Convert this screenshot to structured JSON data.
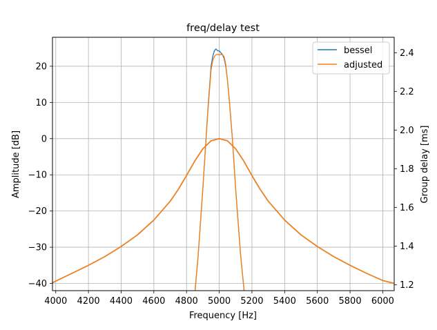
{
  "chart_data": {
    "type": "line",
    "title": "freq/delay test",
    "xlabel": "Frequency [Hz]",
    "ylabel": "Amplitude [dB]",
    "y2label": "Group delay [ms]",
    "xlim": [
      3980,
      6070
    ],
    "ylim": [
      -42,
      28
    ],
    "y2lim": [
      1.17,
      2.48
    ],
    "xticks": [
      4000,
      4200,
      4400,
      4600,
      4800,
      5000,
      5200,
      5400,
      5600,
      5800,
      6000
    ],
    "yticks": [
      -40,
      -30,
      -20,
      -10,
      0,
      10,
      20
    ],
    "y2ticks": [
      1.2,
      1.4,
      1.6,
      1.8,
      2.0,
      2.2,
      2.4
    ],
    "xtick_labels": [
      "4000",
      "4200",
      "4400",
      "4600",
      "4800",
      "5000",
      "5200",
      "5400",
      "5600",
      "5800",
      "6000"
    ],
    "ytick_labels": [
      "−40",
      "−30",
      "−20",
      "−10",
      "0",
      "10",
      "20"
    ],
    "y2tick_labels": [
      "1.2",
      "1.4",
      "1.6",
      "1.8",
      "2.0",
      "2.2",
      "2.4"
    ],
    "grid": true,
    "legend_position": "top-right",
    "series": [
      {
        "name": "bessel",
        "color": "#1f77b4",
        "amplitude": {
          "x": [
            3980,
            4100,
            4200,
            4300,
            4400,
            4500,
            4600,
            4700,
            4750,
            4800,
            4850,
            4900,
            4950,
            5000,
            5050,
            5100,
            5150,
            5200,
            5250,
            5300,
            5400,
            5500,
            5600,
            5700,
            5800,
            5900,
            6000,
            6070
          ],
          "y": [
            -39.8,
            -37.2,
            -35.0,
            -32.6,
            -29.8,
            -26.6,
            -22.5,
            -17.3,
            -14.0,
            -10.2,
            -6.2,
            -2.8,
            -0.6,
            0.0,
            -0.6,
            -2.8,
            -6.2,
            -10.2,
            -14.0,
            -17.3,
            -22.5,
            -26.6,
            -29.8,
            -32.6,
            -35.0,
            -37.2,
            -39.2,
            -40.0
          ]
        },
        "group_delay": {
          "x": [
            4852,
            4870,
            4900,
            4930,
            4950,
            4960,
            4970,
            4980,
            4990,
            5000,
            5010,
            5020,
            5030,
            5040,
            5050,
            5060,
            5080,
            5100,
            5130,
            5152
          ],
          "y": [
            1.17,
            1.34,
            1.7,
            2.1,
            2.33,
            2.38,
            2.41,
            2.42,
            2.41,
            2.41,
            2.4,
            2.39,
            2.37,
            2.33,
            2.26,
            2.17,
            1.96,
            1.7,
            1.36,
            1.17
          ]
        }
      },
      {
        "name": "adjusted",
        "color": "#ff7f0e",
        "amplitude": {
          "x": [
            3980,
            4100,
            4200,
            4300,
            4400,
            4500,
            4600,
            4700,
            4750,
            4800,
            4850,
            4900,
            4950,
            5000,
            5050,
            5100,
            5150,
            5200,
            5250,
            5300,
            5400,
            5500,
            5600,
            5700,
            5800,
            5900,
            6000,
            6070
          ],
          "y": [
            -39.8,
            -37.2,
            -35.0,
            -32.6,
            -29.8,
            -26.6,
            -22.5,
            -17.3,
            -14.0,
            -10.2,
            -6.2,
            -2.8,
            -0.6,
            0.0,
            -0.6,
            -2.8,
            -6.2,
            -10.2,
            -14.0,
            -17.3,
            -22.5,
            -26.6,
            -29.8,
            -32.6,
            -35.0,
            -37.2,
            -39.2,
            -40.0
          ]
        },
        "group_delay": {
          "x": [
            4852,
            4870,
            4900,
            4930,
            4950,
            4960,
            4970,
            4980,
            4990,
            5000,
            5010,
            5020,
            5030,
            5040,
            5050,
            5060,
            5080,
            5100,
            5130,
            5152
          ],
          "y": [
            1.17,
            1.34,
            1.7,
            2.09,
            2.31,
            2.36,
            2.38,
            2.39,
            2.39,
            2.39,
            2.39,
            2.39,
            2.38,
            2.34,
            2.26,
            2.17,
            1.96,
            1.7,
            1.36,
            1.17
          ]
        }
      }
    ]
  }
}
